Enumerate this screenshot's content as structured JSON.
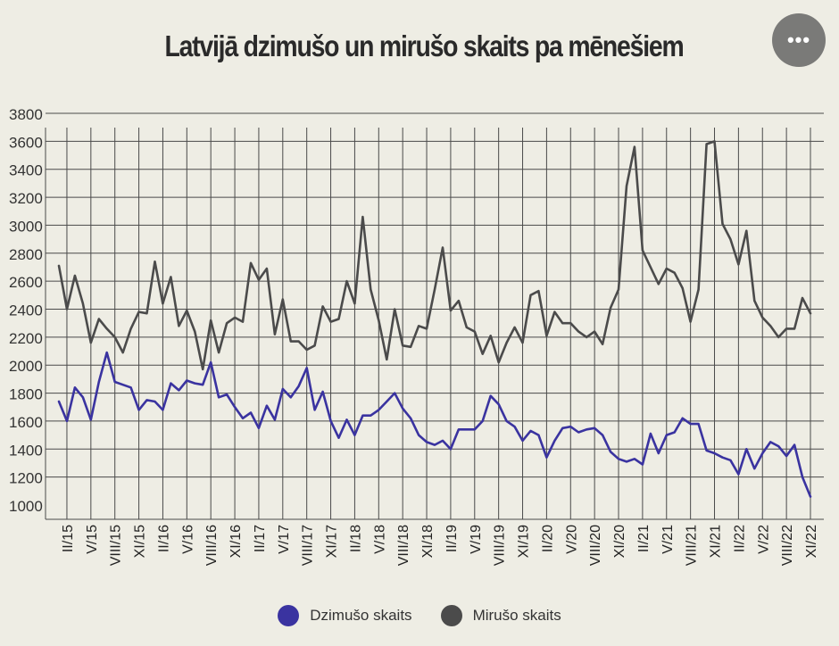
{
  "menu": {
    "label": "•••"
  },
  "chart_data": {
    "type": "line",
    "title": "Latvijā dzimušo un mirušo skaits pa mēnešiem",
    "xlabel": "",
    "ylabel": "",
    "ylim": [
      1000,
      3800
    ],
    "yticks": [
      1000,
      1200,
      1400,
      1600,
      1800,
      2000,
      2200,
      2400,
      2600,
      2800,
      3000,
      3200,
      3400,
      3600,
      3800
    ],
    "grid": true,
    "legend_position": "bottom",
    "categories": [
      "I/15",
      "II/15",
      "III/15",
      "IV/15",
      "V/15",
      "VI/15",
      "VII/15",
      "VIII/15",
      "IX/15",
      "X/15",
      "XI/15",
      "XII/15",
      "I/16",
      "II/16",
      "III/16",
      "IV/16",
      "V/16",
      "VI/16",
      "VII/16",
      "VIII/16",
      "IX/16",
      "X/16",
      "XI/16",
      "XII/16",
      "I/17",
      "II/17",
      "III/17",
      "IV/17",
      "V/17",
      "VI/17",
      "VII/17",
      "VIII/17",
      "IX/17",
      "X/17",
      "XI/17",
      "XII/17",
      "I/18",
      "II/18",
      "III/18",
      "IV/18",
      "V/18",
      "VI/18",
      "VII/18",
      "VIII/18",
      "IX/18",
      "X/18",
      "XI/18",
      "XII/18",
      "I/19",
      "II/19",
      "III/19",
      "IV/19",
      "V/19",
      "VI/19",
      "VII/19",
      "VIII/19",
      "IX/19",
      "X/19",
      "XI/19",
      "XII/19",
      "I/20",
      "II/20",
      "III/20",
      "IV/20",
      "V/20",
      "VI/20",
      "VII/20",
      "VIII/20",
      "IX/20",
      "X/20",
      "XI/20",
      "XII/20",
      "I/21",
      "II/21",
      "III/21",
      "IV/21",
      "V/21",
      "VI/21",
      "VII/21",
      "VIII/21",
      "IX/21",
      "X/21",
      "XI/21",
      "XII/21",
      "I/22",
      "II/22",
      "III/22",
      "IV/22",
      "V/22",
      "VI/22",
      "VII/22",
      "VIII/22",
      "IX/22",
      "X/22",
      "XI/22"
    ],
    "tick_labels": [
      "II/15",
      "V/15",
      "VIII/15",
      "XI/15",
      "II/16",
      "V/16",
      "VIII/16",
      "XI/16",
      "II/17",
      "V/17",
      "VIII/17",
      "XI/17",
      "II/18",
      "V/18",
      "VIII/18",
      "XI/18",
      "II/19",
      "V/19",
      "VIII/19",
      "XI/19",
      "II/20",
      "V/20",
      "VIII/20",
      "XI/20",
      "II/21",
      "V/21",
      "VIII/21",
      "XI/21",
      "II/22",
      "V/22",
      "VIII/22",
      "XI/22"
    ],
    "series": [
      {
        "name": "Dzimušo skaits",
        "color": "#3a33a0",
        "values": [
          1740,
          1600,
          1840,
          1770,
          1610,
          1880,
          2090,
          1880,
          1860,
          1840,
          1680,
          1750,
          1740,
          1680,
          1870,
          1820,
          1890,
          1870,
          1860,
          2020,
          1770,
          1790,
          1700,
          1620,
          1660,
          1550,
          1710,
          1610,
          1830,
          1770,
          1850,
          1980,
          1680,
          1810,
          1600,
          1480,
          1610,
          1500,
          1640,
          1640,
          1680,
          1740,
          1800,
          1690,
          1620,
          1500,
          1450,
          1430,
          1460,
          1400,
          1540,
          1540,
          1540,
          1600,
          1780,
          1720,
          1600,
          1560,
          1460,
          1530,
          1500,
          1340,
          1460,
          1550,
          1560,
          1520,
          1540,
          1550,
          1500,
          1380,
          1330,
          1310,
          1330,
          1290,
          1510,
          1370,
          1500,
          1520,
          1620,
          1580,
          1580,
          1390,
          1370,
          1340,
          1320,
          1220,
          1400,
          1260,
          1370,
          1450,
          1420,
          1350,
          1430,
          1200,
          1060
        ]
      },
      {
        "name": "Mirušo skaits",
        "color": "#4b4b4b",
        "values": [
          2710,
          2400,
          2640,
          2440,
          2160,
          2330,
          2260,
          2200,
          2090,
          2260,
          2380,
          2370,
          2740,
          2440,
          2630,
          2280,
          2390,
          2240,
          1970,
          2320,
          2090,
          2300,
          2340,
          2310,
          2730,
          2610,
          2690,
          2220,
          2470,
          2170,
          2170,
          2110,
          2140,
          2420,
          2310,
          2330,
          2600,
          2440,
          3060,
          2540,
          2320,
          2040,
          2400,
          2140,
          2130,
          2280,
          2260,
          2540,
          2840,
          2390,
          2460,
          2270,
          2240,
          2080,
          2210,
          2020,
          2160,
          2270,
          2160,
          2500,
          2530,
          2210,
          2380,
          2300,
          2300,
          2240,
          2200,
          2240,
          2150,
          2410,
          2540,
          3280,
          3560,
          2820,
          2700,
          2580,
          2690,
          2660,
          2550,
          2310,
          2540,
          3580,
          3600,
          3010,
          2900,
          2720,
          2960,
          2460,
          2340,
          2280,
          2200,
          2260,
          2260,
          2480,
          2370
        ]
      }
    ]
  },
  "legend": [
    {
      "label": "Dzimušo skaits",
      "color": "#3a33a0"
    },
    {
      "label": "Mirušo skaits",
      "color": "#4b4b4b"
    }
  ]
}
